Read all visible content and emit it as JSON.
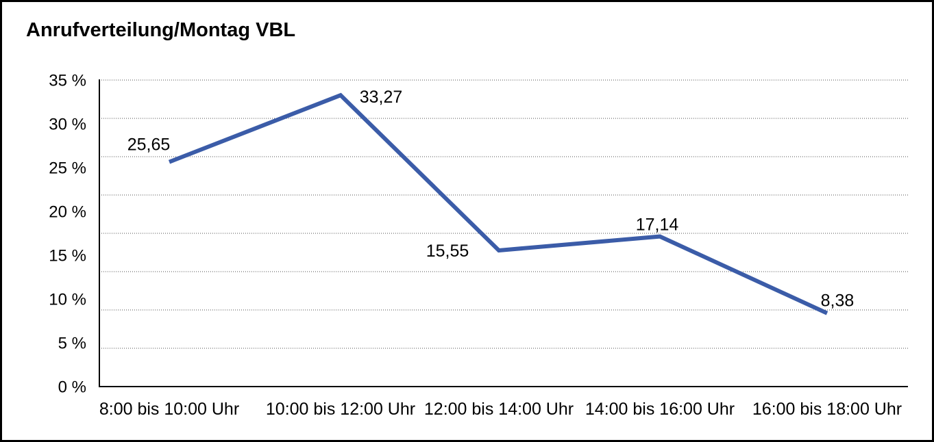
{
  "canvas": {
    "background": "#ffffff",
    "border_color": "#000000"
  },
  "chart": {
    "title": "Anrufverteilung/Montag VBL"
  },
  "chart_data": {
    "type": "line",
    "title": "Anrufverteilung/Montag VBL",
    "categories": [
      "8:00 bis 10:00 Uhr",
      "10:00 bis 12:00 Uhr",
      "12:00 bis 14:00 Uhr",
      "14:00 bis 16:00 Uhr",
      "16:00 bis 18:00 Uhr"
    ],
    "series": [
      {
        "name": "Anrufverteilung Montag VBL",
        "values": [
          25.65,
          33.27,
          15.55,
          17.14,
          8.38
        ]
      }
    ],
    "point_labels": [
      "25,65",
      "33,27",
      "15,55",
      "17,14",
      "8,38"
    ],
    "y_tick_labels": [
      "35 %",
      "30 %",
      "25 %",
      "20 %",
      "15 %",
      "10 %",
      "5 %",
      "0 %"
    ],
    "ylim": [
      0,
      35
    ],
    "y_unit": "%",
    "xlabel": "",
    "ylabel": "",
    "grid": "horizontal-dotted",
    "legend": "none",
    "line_color": "#3B5CA8"
  }
}
